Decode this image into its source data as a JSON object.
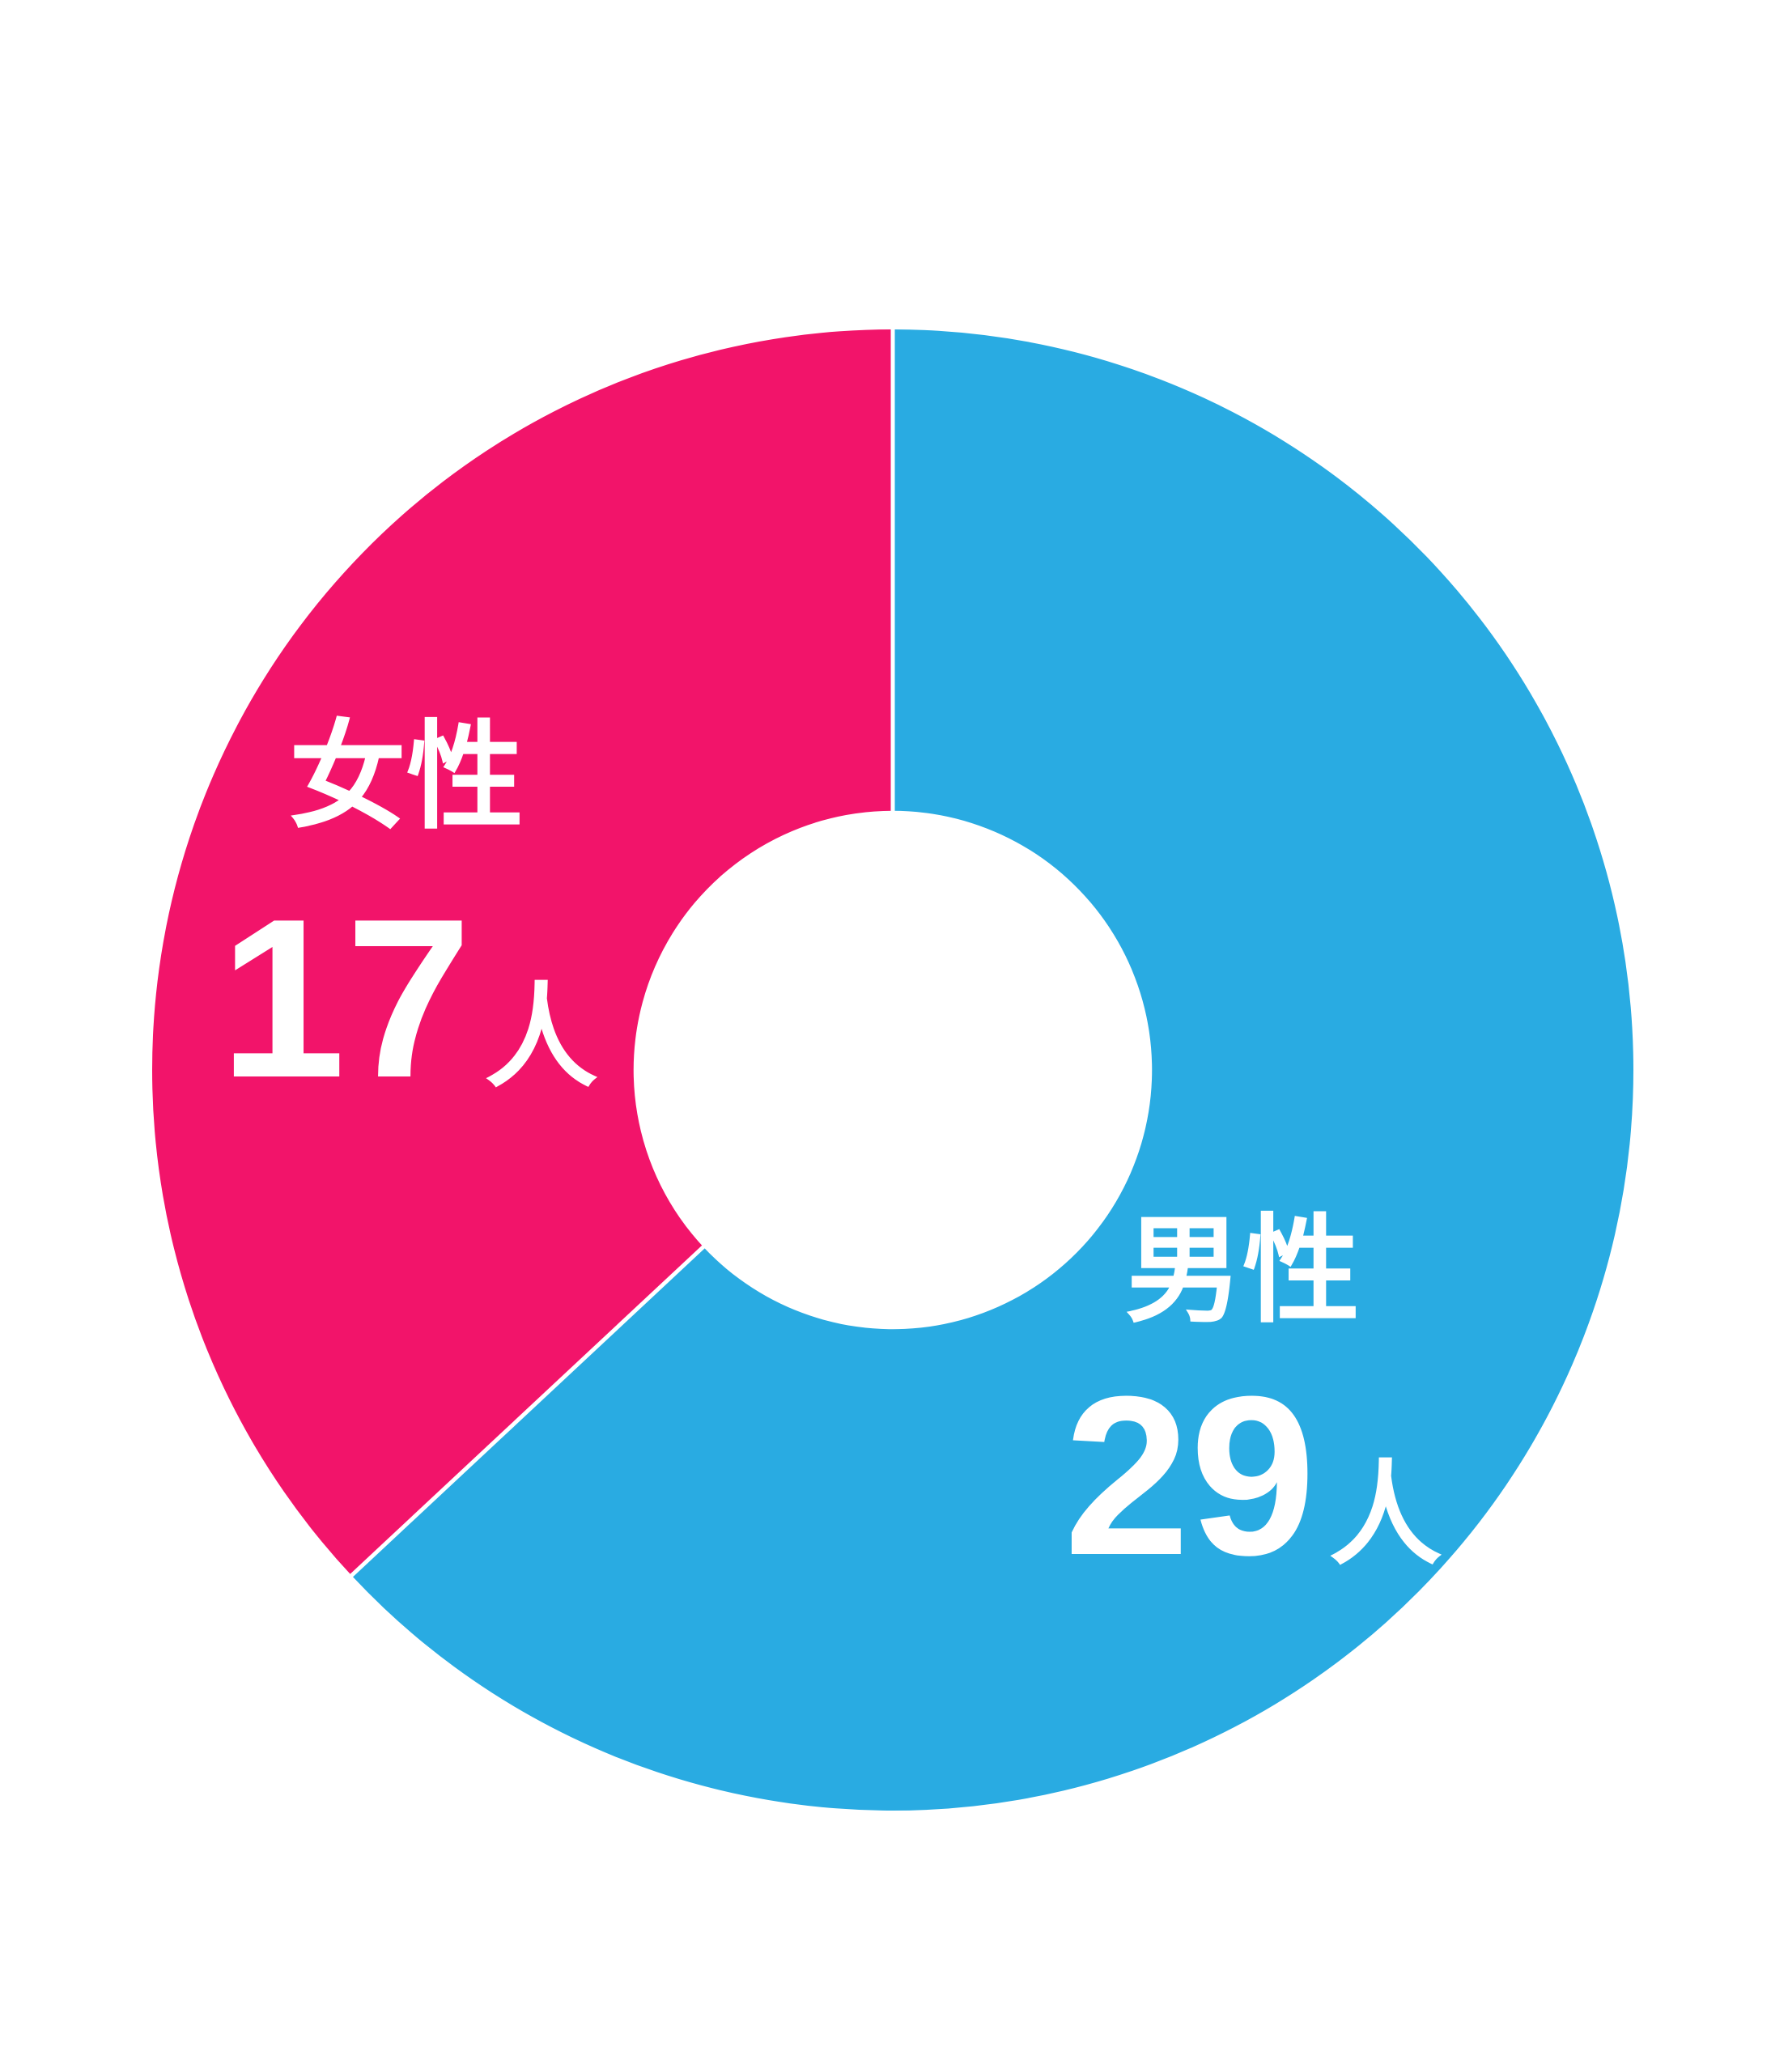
{
  "chart_data": {
    "type": "pie",
    "subtype": "donut",
    "title": "",
    "categories": [
      "男性",
      "女性"
    ],
    "values": [
      29,
      17
    ],
    "unit": "人",
    "series_colors": [
      "#29ABE2",
      "#F2146A"
    ],
    "semantic_names": [
      "male",
      "female"
    ],
    "label_color": "#FFFFFF",
    "background_color": "#FFFFFF",
    "separator_color": "#FFFFFF",
    "start_angle_deg": 0,
    "direction": "clockwise",
    "donut_hole_ratio": 0.35,
    "legend_position": "none",
    "labels": [
      {
        "category": "男性",
        "value_text": "29",
        "unit": "人"
      },
      {
        "category": "女性",
        "value_text": "17",
        "unit": "人"
      }
    ]
  }
}
